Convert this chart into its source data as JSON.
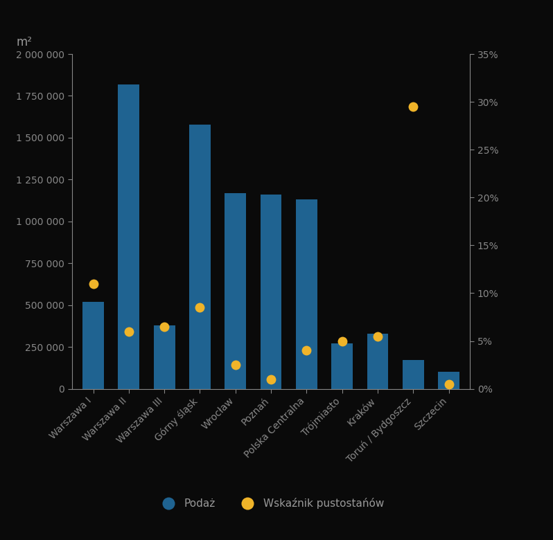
{
  "categories": [
    "Warszawa I",
    "Warszawa II",
    "Warszawa III",
    "Górny śląsk",
    "Wrocław",
    "Poznań",
    "Polska Centralna",
    "Trójmiasto",
    "Kraków",
    "Toruń / Bydgoszcz",
    "Szczecin"
  ],
  "bar_values": [
    520000,
    1820000,
    380000,
    1580000,
    1170000,
    1160000,
    1130000,
    270000,
    330000,
    170000,
    100000
  ],
  "dot_values_pct": [
    0.11,
    0.06,
    0.065,
    0.085,
    0.025,
    0.01,
    0.04,
    0.05,
    0.055,
    0.295,
    0.005
  ],
  "bar_color": "#1f6391",
  "dot_color": "#f0b429",
  "background_color": "#0a0a0a",
  "text_color": "#999999",
  "ylim_left": [
    0,
    2000000
  ],
  "ylim_right": [
    0,
    0.35
  ],
  "yticks_left": [
    0,
    250000,
    500000,
    750000,
    1000000,
    1250000,
    1500000,
    1750000,
    2000000
  ],
  "yticks_right": [
    0.0,
    0.05,
    0.1,
    0.15,
    0.2,
    0.25,
    0.3,
    0.35
  ],
  "ytick_labels_left": [
    "0",
    "250 000",
    "500 000",
    "750 000",
    "1 000 000",
    "1 250 000",
    "1 500 000",
    "1 750 000",
    "2 000 000"
  ],
  "ytick_labels_right": [
    "0%",
    "5%",
    "10%",
    "15%",
    "20%",
    "25%",
    "30%",
    "35%"
  ],
  "ylabel_left": "m²",
  "legend_label_bar": "Podaż",
  "legend_label_dot": "Wskaźnik pustostańów",
  "dot_size": 100,
  "bar_width": 0.6,
  "tick_color": "#888888",
  "spine_color": "#888888",
  "tick_fontsize": 10,
  "legend_fontsize": 11,
  "ylabel_fontsize": 12
}
